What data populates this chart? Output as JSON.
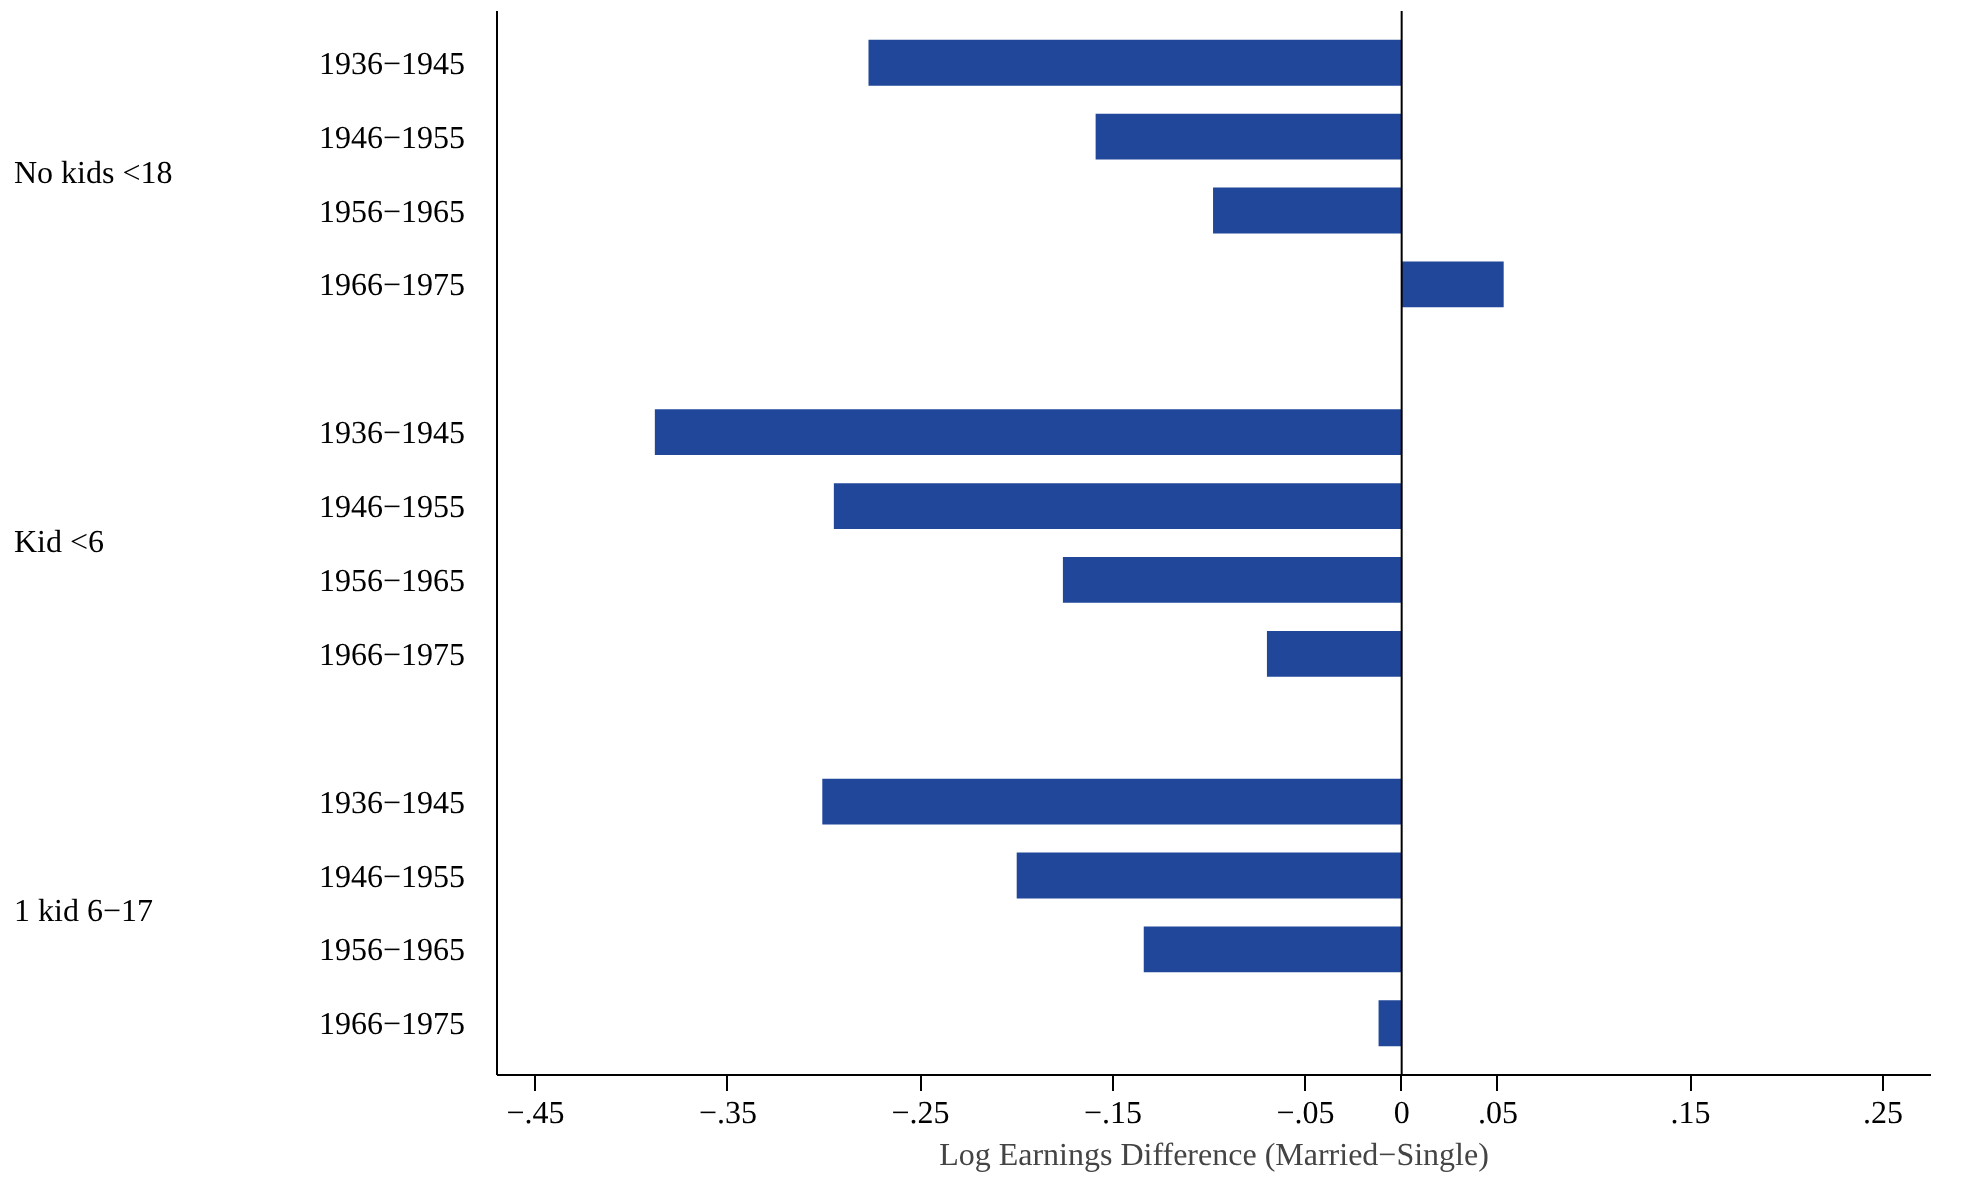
{
  "chart_data": {
    "type": "bar",
    "orientation": "horizontal",
    "xlabel": "Log Earnings Difference (Married−Single)",
    "categories": [
      "1936−1945",
      "1946−1955",
      "1956−1965",
      "1966−1975",
      null,
      "1936−1945",
      "1946−1955",
      "1956−1965",
      "1966−1975",
      null,
      "1936−1945",
      "1946−1955",
      "1956−1965",
      "1966−1975"
    ],
    "values": [
      -0.277,
      -0.159,
      -0.098,
      0.053,
      null,
      -0.388,
      -0.295,
      -0.176,
      -0.07,
      null,
      -0.301,
      -0.2,
      -0.134,
      -0.012
    ],
    "color": "#21479a",
    "xlim": [
      -0.47,
      0.275
    ],
    "xticks": [
      {
        "value": -0.45,
        "label": "−.45"
      },
      {
        "value": -0.35,
        "label": "−.35"
      },
      {
        "value": -0.25,
        "label": "−.25"
      },
      {
        "value": -0.15,
        "label": "−.15"
      },
      {
        "value": -0.05,
        "label": "−.05"
      },
      0,
      {
        "value": 0.05,
        "label": ".05"
      },
      {
        "value": 0.15,
        "label": ".15"
      },
      {
        "value": 0.25,
        "label": ".25"
      }
    ],
    "annotations": [
      "No kids <18",
      "Kid <6",
      "1 kid 6−17"
    ],
    "ref_lines": [
      {
        "axis": "x",
        "value": 0,
        "color": "#000000"
      }
    ],
    "grid": false
  }
}
